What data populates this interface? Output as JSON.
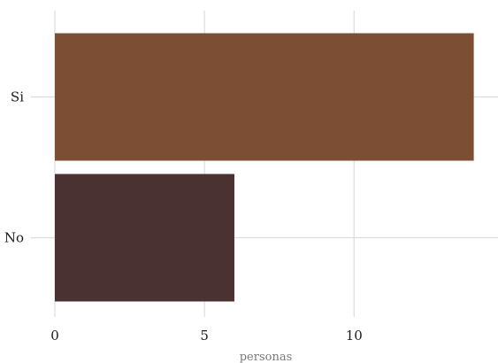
{
  "chart_data": {
    "type": "bar",
    "orientation": "horizontal",
    "categories": [
      "Si",
      "No"
    ],
    "values": [
      14,
      6
    ],
    "colors": [
      "#7c4e34",
      "#4a3232"
    ],
    "xlabel": "personas",
    "ylabel": "",
    "title": "",
    "xlim": [
      0,
      14.1
    ],
    "xticks": [
      0,
      5,
      10
    ],
    "grid": true,
    "legend": "none"
  }
}
